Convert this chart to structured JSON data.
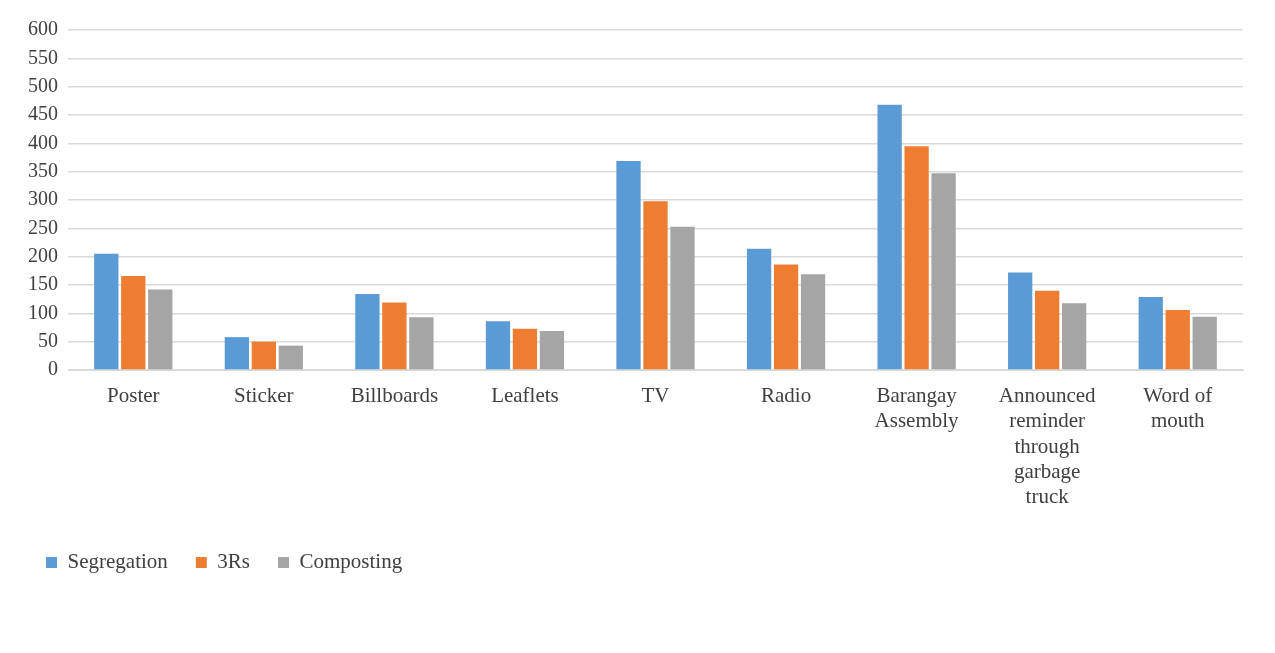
{
  "chart_data": {
    "type": "bar",
    "categories": [
      "Poster",
      "Sticker",
      "Billboards",
      "Leaflets",
      "TV",
      "Radio",
      "Barangay Assembly",
      "Announced reminder through garbage truck",
      "Word of mouth"
    ],
    "series": [
      {
        "name": "Segregation",
        "color": "#5b9bd5",
        "values": [
          205,
          58,
          134,
          86,
          369,
          214,
          468,
          172,
          129
        ]
      },
      {
        "name": "3Rs",
        "color": "#ed7d31",
        "values": [
          166,
          50,
          119,
          73,
          298,
          186,
          395,
          140,
          106
        ]
      },
      {
        "name": "Composting",
        "color": "#a5a5a5",
        "values": [
          142,
          43,
          93,
          69,
          253,
          169,
          347,
          118,
          94
        ]
      }
    ],
    "ylim": [
      0,
      600
    ],
    "yticks": [
      0,
      50,
      100,
      150,
      200,
      250,
      300,
      350,
      400,
      450,
      500,
      550,
      600
    ],
    "grid": "y",
    "legend": "bottom left"
  }
}
